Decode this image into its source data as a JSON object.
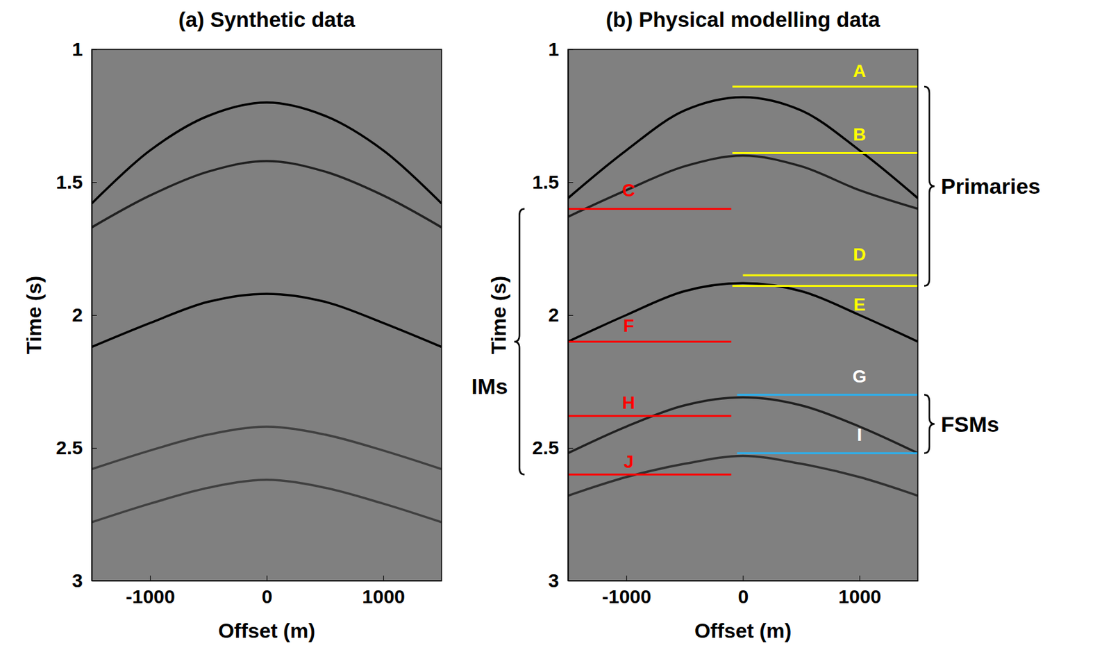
{
  "chart_data": [
    {
      "type": "line",
      "title": "(a) Synthetic data",
      "x_label": "Offset (m)",
      "y_label": "Time (s)",
      "xlim": [
        -1500,
        1500
      ],
      "ylim": [
        3,
        1
      ],
      "xticks": [
        -1000,
        0,
        1000
      ],
      "yticks": [
        1,
        1.5,
        2,
        2.5,
        3
      ],
      "x": [
        -1500,
        -1000,
        -500,
        0,
        500,
        1000,
        1500
      ],
      "series": [
        {
          "color": "#000000",
          "values": [
            1.58,
            1.38,
            1.25,
            1.2,
            1.25,
            1.38,
            1.58
          ]
        },
        {
          "color": "#202020",
          "values": [
            1.67,
            1.55,
            1.46,
            1.42,
            1.46,
            1.55,
            1.67
          ]
        },
        {
          "color": "#000000",
          "values": [
            2.12,
            2.03,
            1.95,
            1.92,
            1.95,
            2.03,
            2.12
          ]
        },
        {
          "color": "#404040",
          "values": [
            2.58,
            2.51,
            2.45,
            2.42,
            2.45,
            2.51,
            2.58
          ]
        },
        {
          "color": "#404040",
          "values": [
            2.78,
            2.71,
            2.65,
            2.62,
            2.65,
            2.71,
            2.78
          ]
        }
      ]
    },
    {
      "type": "line",
      "title": "(b) Physical modelling data",
      "x_label": "Offset (m)",
      "y_label": "Time (s)",
      "xlim": [
        -1500,
        1500
      ],
      "ylim": [
        3,
        1
      ],
      "xticks": [
        -1000,
        0,
        1000
      ],
      "yticks": [
        1,
        1.5,
        2,
        2.5,
        3
      ],
      "x": [
        -1500,
        -1000,
        -500,
        0,
        500,
        1000,
        1500
      ],
      "series": [
        {
          "color": "#000000",
          "values": [
            1.56,
            1.38,
            1.23,
            1.18,
            1.23,
            1.38,
            1.56
          ]
        },
        {
          "color": "#202020",
          "values": [
            1.63,
            1.53,
            1.44,
            1.4,
            1.44,
            1.53,
            1.6
          ]
        },
        {
          "color": "#000000",
          "values": [
            2.1,
            2.0,
            1.91,
            1.88,
            1.91,
            2.0,
            2.1
          ]
        },
        {
          "color": "#202020",
          "values": [
            2.52,
            2.42,
            2.34,
            2.31,
            2.34,
            2.42,
            2.52
          ]
        },
        {
          "color": "#303030",
          "values": [
            2.68,
            2.61,
            2.56,
            2.53,
            2.56,
            2.61,
            2.68
          ]
        }
      ],
      "lines": [
        {
          "y": 1.14,
          "x": [
            -90,
            1500
          ],
          "color": "#ffff00"
        },
        {
          "y": 1.39,
          "x": [
            -90,
            1500
          ],
          "color": "#ffff00"
        },
        {
          "y": 1.85,
          "x": [
            0,
            1500
          ],
          "color": "#ffff00"
        },
        {
          "y": 1.89,
          "x": [
            -90,
            1500
          ],
          "color": "#ffff00"
        },
        {
          "y": 1.6,
          "x": [
            -1500,
            -100
          ],
          "color": "#ff0000"
        },
        {
          "y": 2.1,
          "x": [
            -1500,
            -100
          ],
          "color": "#ff0000"
        },
        {
          "y": 2.38,
          "x": [
            -1500,
            -100
          ],
          "color": "#ff0000"
        },
        {
          "y": 2.6,
          "x": [
            -1500,
            -100
          ],
          "color": "#ff0000"
        },
        {
          "y": 2.3,
          "x": [
            -50,
            1500
          ],
          "color": "#2ab0f0"
        },
        {
          "y": 2.52,
          "x": [
            -50,
            1500
          ],
          "color": "#2ab0f0"
        }
      ],
      "annotations": [
        {
          "text": "A",
          "x": 1000,
          "y": 1.08,
          "color": "#ffff00"
        },
        {
          "text": "B",
          "x": 1000,
          "y": 1.32,
          "color": "#ffff00"
        },
        {
          "text": "C",
          "x": -980,
          "y": 1.53,
          "color": "#ff0000"
        },
        {
          "text": "D",
          "x": 1000,
          "y": 1.77,
          "color": "#ffff00"
        },
        {
          "text": "E",
          "x": 1000,
          "y": 1.96,
          "color": "#ffff00"
        },
        {
          "text": "F",
          "x": -980,
          "y": 2.04,
          "color": "#ff0000"
        },
        {
          "text": "G",
          "x": 1000,
          "y": 2.23,
          "color": "#ffffff"
        },
        {
          "text": "H",
          "x": -980,
          "y": 2.33,
          "color": "#ff0000"
        },
        {
          "text": "I",
          "x": 1000,
          "y": 2.45,
          "color": "#ffffff"
        },
        {
          "text": "J",
          "x": -980,
          "y": 2.55,
          "color": "#ff0000"
        }
      ],
      "brackets": [
        {
          "text": "Primaries",
          "y": [
            1.14,
            1.89
          ],
          "side": "right"
        },
        {
          "text": "IMs",
          "y": [
            1.6,
            2.6
          ],
          "side": "left"
        },
        {
          "text": "FSMs",
          "y": [
            2.3,
            2.52
          ],
          "side": "right"
        }
      ]
    }
  ]
}
